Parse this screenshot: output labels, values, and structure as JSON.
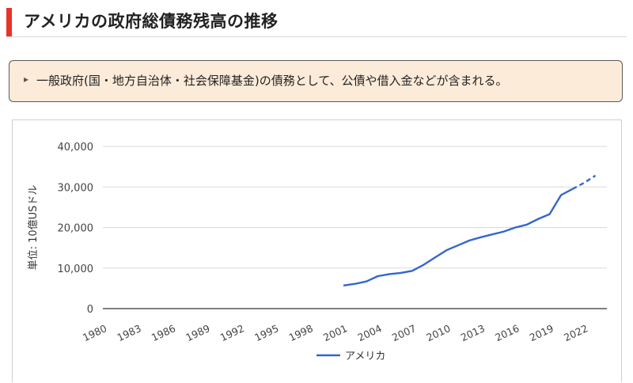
{
  "header": {
    "title": "アメリカの政府総債務残高の推移"
  },
  "note": {
    "bullet": "▸",
    "text": "一般政府(国・地方自治体・社会保障基金)の債務として、公債や借入金などが含まれる。"
  },
  "chart_data": {
    "type": "line",
    "title": "",
    "xlabel": "",
    "ylabel": "単位: 10億USドル",
    "xlim": [
      1980,
      2024
    ],
    "ylim": [
      0,
      40000
    ],
    "y_ticks": [
      0,
      10000,
      20000,
      30000,
      40000
    ],
    "y_tick_labels": [
      "0",
      "10,000",
      "20,000",
      "30,000",
      "40,000"
    ],
    "x_ticks": [
      1980,
      1983,
      1986,
      1989,
      1992,
      1995,
      1998,
      2001,
      2004,
      2007,
      2010,
      2013,
      2016,
      2019,
      2022
    ],
    "x_tick_labels": [
      "1980",
      "1983",
      "1986",
      "1989",
      "1992",
      "1995",
      "1998",
      "2001",
      "2004",
      "2007",
      "2010",
      "2013",
      "2016",
      "2019",
      "2022"
    ],
    "grid": true,
    "legend": "bottom",
    "colors": {
      "series": "#3366cc",
      "grid": "#d9d9d9",
      "axis": "#333333"
    },
    "series": [
      {
        "name": "アメリカ",
        "x": [
          2001,
          2002,
          2003,
          2004,
          2005,
          2006,
          2007,
          2008,
          2009,
          2010,
          2011,
          2012,
          2013,
          2014,
          2015,
          2016,
          2017,
          2018,
          2019,
          2020,
          2021,
          2022,
          2023
        ],
        "values": [
          5700,
          6100,
          6700,
          8000,
          8500,
          8800,
          9300,
          10800,
          12600,
          14400,
          15600,
          16800,
          17600,
          18300,
          19000,
          20000,
          20700,
          22100,
          23300,
          28000,
          29500,
          31000,
          32800
        ],
        "estimate_from_index": 21
      }
    ]
  }
}
